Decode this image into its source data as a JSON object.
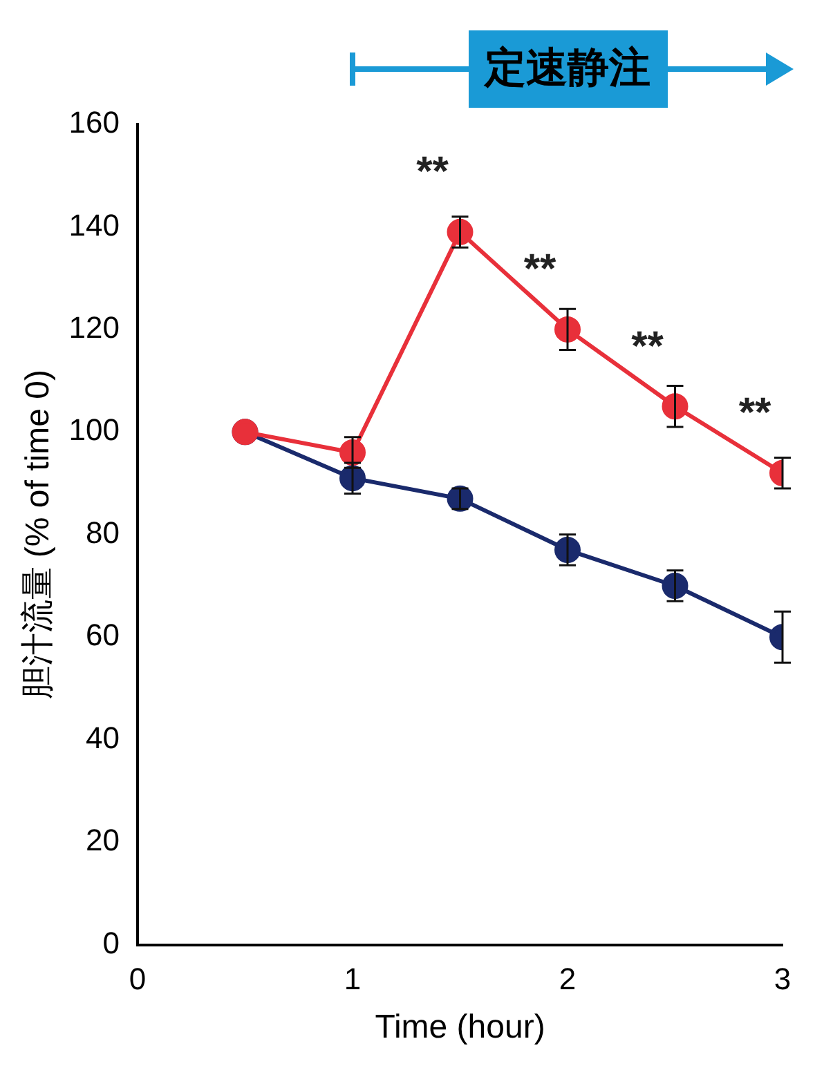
{
  "chart_data": {
    "type": "line",
    "xlabel": "Time (hour)",
    "ylabel": "胆汁流量 (% of time 0)",
    "x": [
      0.5,
      1,
      1.5,
      2,
      2.5,
      3
    ],
    "series": [
      {
        "color": "#e8303a",
        "values": [
          100,
          96,
          139,
          120,
          105,
          92
        ],
        "errors": [
          null,
          3,
          3,
          4,
          4,
          3
        ]
      },
      {
        "color": "#1a2a6c",
        "values": [
          100,
          91,
          87,
          77,
          70,
          60
        ],
        "errors": [
          null,
          3,
          2,
          3,
          3,
          5
        ]
      }
    ],
    "xlim": [
      0,
      3
    ],
    "xticks": [
      0,
      1,
      2,
      3
    ],
    "ylim": [
      0,
      160
    ],
    "yticks": [
      0,
      20,
      40,
      60,
      80,
      100,
      120,
      140,
      160
    ],
    "grid": false,
    "legend": false,
    "marker": "circle",
    "line_style": "solid",
    "annotations": [
      {
        "text": "**",
        "x": 1.5,
        "y": 139
      },
      {
        "text": "**",
        "x": 2,
        "y": 120
      },
      {
        "text": "**",
        "x": 2.5,
        "y": 105
      },
      {
        "text": "**",
        "x": 3,
        "y": 92
      },
      "定速静注"
    ]
  }
}
